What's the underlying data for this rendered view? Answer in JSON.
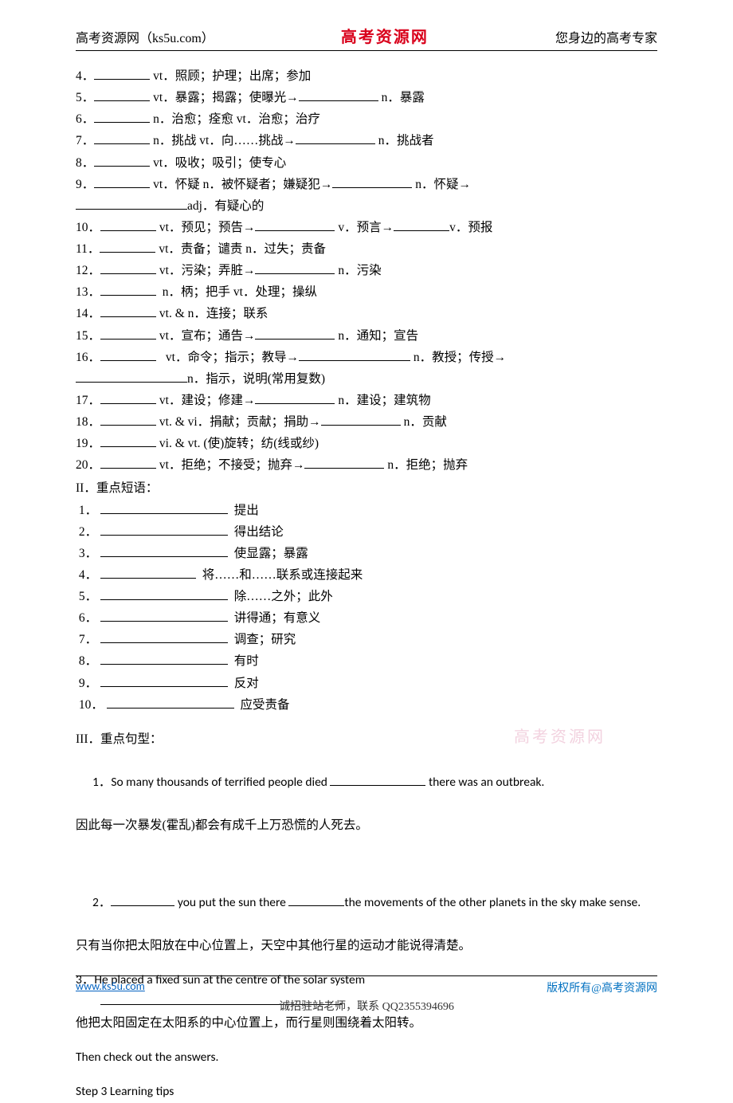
{
  "header": {
    "left": "高考资源网（ks5u.com）",
    "center": "高考资源网",
    "right": "您身边的高考专家"
  },
  "vocab": [
    {
      "num": "4．",
      "t1": "vt．照顾；护理；出席；参加",
      "extra": null
    },
    {
      "num": "5．",
      "t1": "vt．暴露；揭露；使曝光→",
      "t2": "n．暴露"
    },
    {
      "num": "6．",
      "t1": "n．治愈；痊愈 vt．治愈；治疗",
      "extra": null
    },
    {
      "num": "7．",
      "t1": "n．挑战 vt．向……挑战→",
      "t2": "n．挑战者"
    },
    {
      "num": "8．",
      "t1": "vt．吸收；吸引；使专心",
      "extra": null
    },
    {
      "num": "9．",
      "t1": "vt．怀疑 n．被怀疑者；嫌疑犯→",
      "t2": "n．怀疑→"
    },
    {
      "num": "",
      "t1": "adj．有疑心的",
      "contBlank": true
    },
    {
      "num": "10．",
      "t1": "vt．预见；预告→",
      "t2": "v．预言→",
      "t3": "v．预报"
    },
    {
      "num": "11．",
      "t1": "vt．责备；谴责 n．过失；责备",
      "extra": null
    },
    {
      "num": "12．",
      "t1": "vt．污染；弄脏→",
      "t2": "n．污染"
    },
    {
      "num": "13．",
      "t1": " n．柄；把手 vt．处理；操纵",
      "extra": null
    },
    {
      "num": "14．",
      "t1": "vt. & n．连接；联系",
      "extra": null
    },
    {
      "num": "15．",
      "t1": "vt．宣布；通告→",
      "t2": "n．通知；宣告"
    },
    {
      "num": "16．",
      "t1": "vt．命令；指示；教导→",
      "t2": "n．教授；传授→",
      "wide": true
    },
    {
      "num": "",
      "t1": "n．指示，说明(常用复数)",
      "contBlank": true
    },
    {
      "num": "17．",
      "t1": "vt．建设；修建→",
      "t2": "n．建设；建筑物"
    },
    {
      "num": "18．",
      "t1": "vt. & vi．捐献；贡献；捐助→",
      "t2": "n．贡献"
    },
    {
      "num": "19．",
      "t1": "vi. & vt. (使)旋转；纺(线或纱)",
      "extra": null
    },
    {
      "num": "20．",
      "t1": "vt．拒绝；不接受；抛弃→",
      "t2": "n．拒绝；抛弃"
    }
  ],
  "phrasesTitle": "II．重点短语：",
  "phrases": [
    {
      "num": "1．",
      "cn": "提出"
    },
    {
      "num": "2．",
      "cn": "得出结论"
    },
    {
      "num": "3．",
      "cn": "使显露；暴露"
    },
    {
      "num": "4．",
      "cn": "将……和……联系或连接起来"
    },
    {
      "num": "5．",
      "cn": "除……之外；此外"
    },
    {
      "num": "6．",
      "cn": "讲得通；有意义"
    },
    {
      "num": "7．",
      "cn": "调查；研究"
    },
    {
      "num": "8．",
      "cn": "有时"
    },
    {
      "num": "9．",
      "cn": "反对"
    },
    {
      "num": "10．",
      "cn": "应受责备"
    }
  ],
  "sentTitle": "III．重点句型：",
  "s1a": "1．So many thousands of terrified people died ",
  "s1b": " there was an outbreak.",
  "s1cn": "因此每一次暴发(霍乱)都会有成千上万恐慌的人死去。",
  "s2a": "2．",
  "s2b": " you put the sun there ",
  "s2c": "the movements of the other planets in the sky make sense.",
  "s2cn": "只有当你把太阳放在中心位置上，天空中其他行星的运动才能说得清楚。",
  "s3a": "3．He placed a fixed sun at the centre of the solar system",
  "s3cn": "他把太阳固定在太阳系的中心位置上，而行星则围绕着太阳转。",
  "check": "Then check out the answers.",
  "step3": "Step 3 Learning tips",
  "watermark": "高考资源网",
  "footer": {
    "left": "www.ks5u.com",
    "right": "版权所有@高考资源网",
    "bottom": "诚招驻站老师，联系 QQ2355394696"
  }
}
